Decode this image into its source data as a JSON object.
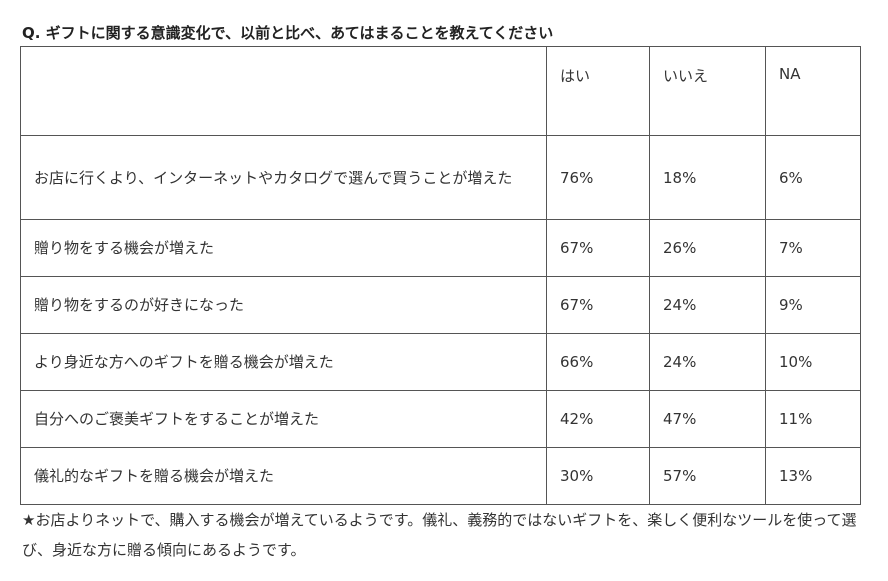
{
  "title": "Q. ギフトに関する意識変化で、以前と比べ、あてはまることを教えてください",
  "table": {
    "headers": [
      "",
      "はい",
      "いいえ",
      "NA"
    ],
    "rows": [
      {
        "question": "お店に行くより、インターネットやカタログで選んで買うことが増えた",
        "yes": "76%",
        "no": "18%",
        "na": "6%"
      },
      {
        "question": "贈り物をする機会が増えた",
        "yes": "67%",
        "no": "26%",
        "na": "7%"
      },
      {
        "question": "贈り物をするのが好きになった",
        "yes": "67%",
        "no": "24%",
        "na": "9%"
      },
      {
        "question": "より身近な方へのギフトを贈る機会が増えた",
        "yes": "66%",
        "no": "24%",
        "na": "10%"
      },
      {
        "question": "自分へのご褒美ギフトをすることが増えた",
        "yes": "42%",
        "no": "47%",
        "na": "11%"
      },
      {
        "question": "儀礼的なギフトを贈る機会が増えた",
        "yes": "30%",
        "no": "57%",
        "na": "13%"
      }
    ]
  },
  "note": "★お店よりネットで、購入する機会が増えているようです。儀礼、義務的ではないギフトを、楽しく便利なツールを使って選び、身近な方に贈る傾向にあるようです。"
}
